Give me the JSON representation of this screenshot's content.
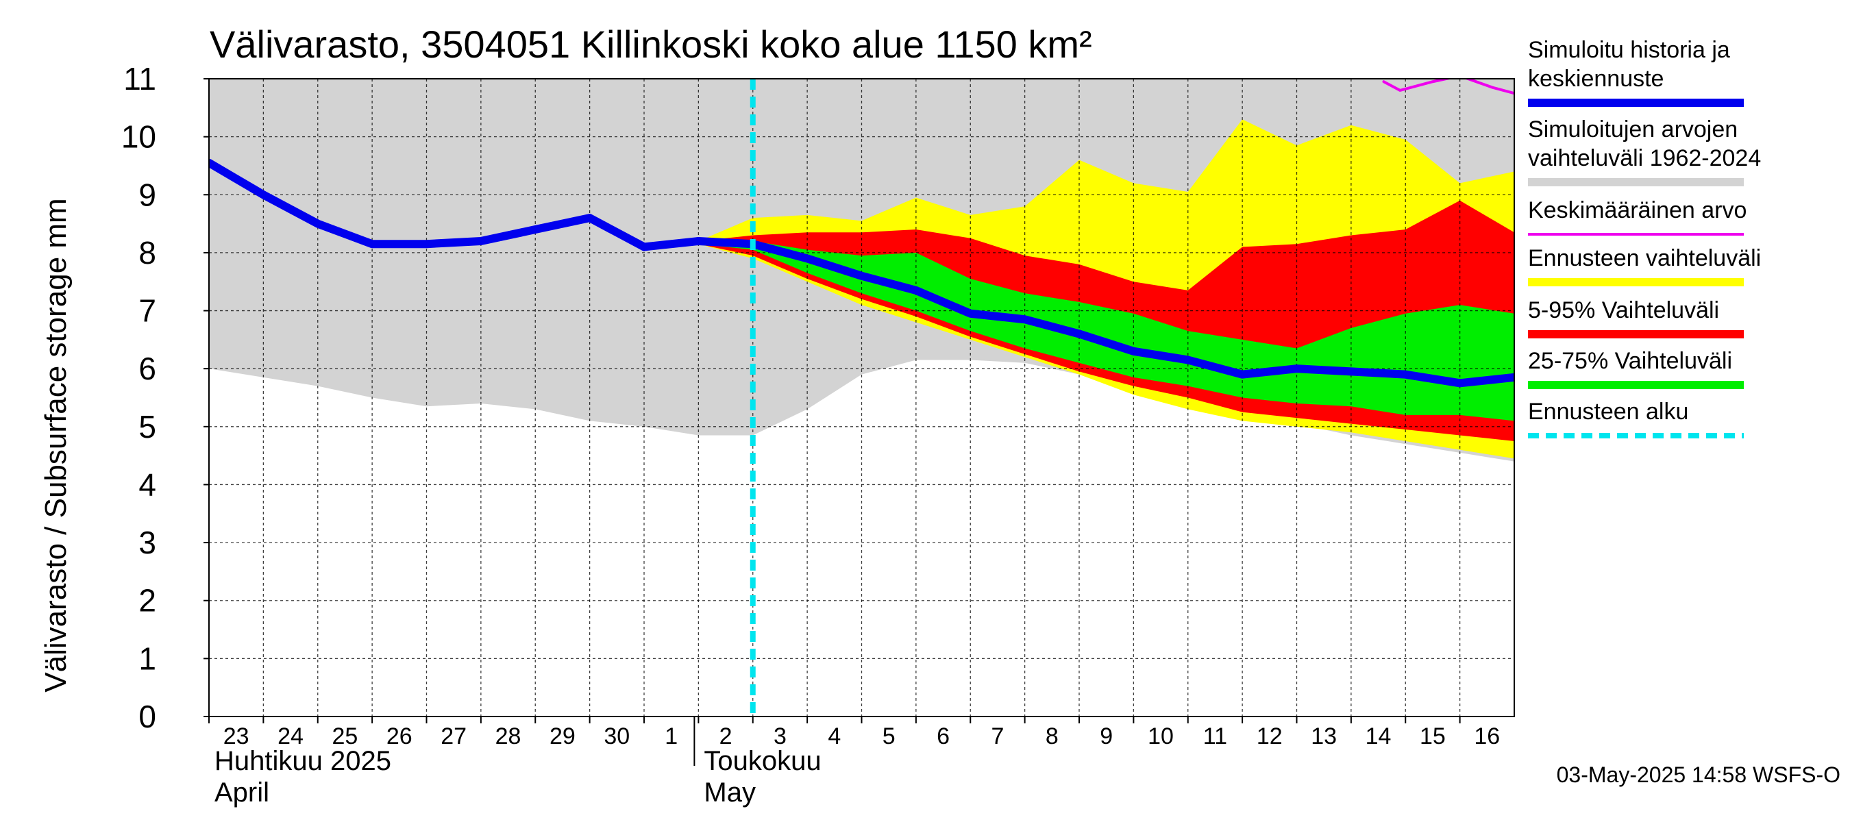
{
  "chart_data": {
    "type": "area",
    "title": "Välivarasto, 3504051 Killinkoski koko alue 1150 km²",
    "ylabel": "Välivarasto / Subsurface storage  mm",
    "ylim": [
      0,
      11
    ],
    "yticks": [
      0,
      1,
      2,
      3,
      4,
      5,
      6,
      7,
      8,
      9,
      10,
      11
    ],
    "x_tick_labels": [
      "23",
      "24",
      "25",
      "26",
      "27",
      "28",
      "29",
      "30",
      "1",
      "2",
      "3",
      "4",
      "5",
      "6",
      "7",
      "8",
      "9",
      "10",
      "11",
      "12",
      "13",
      "14",
      "15",
      "16"
    ],
    "x_range_days": [
      0,
      24
    ],
    "month_labels": [
      {
        "line1": "Huhtikuu  2025",
        "line2": "April",
        "day_index": 0
      },
      {
        "line1": "Toukokuu",
        "line2": "May",
        "day_index": 9
      }
    ],
    "forecast_start_day": 10,
    "timestamp": "03-May-2025 14:58 WSFS-O",
    "legend": [
      {
        "label_lines": [
          "Simuloitu historia ja",
          "keskiennuste"
        ],
        "color": "#0000ee",
        "style": "thick"
      },
      {
        "label_lines": [
          "Simuloitujen arvojen",
          "vaihteluväli 1962-2024"
        ],
        "color": "#d3d3d3",
        "style": "thick"
      },
      {
        "label_lines": [
          "Keskimääräinen arvo"
        ],
        "color": "#ee00ee",
        "style": "thin"
      },
      {
        "label_lines": [
          "Ennusteen vaihteluväli"
        ],
        "color": "#ffff00",
        "style": "thick"
      },
      {
        "label_lines": [
          "5-95% Vaihteluväli"
        ],
        "color": "#ff0000",
        "style": "thick"
      },
      {
        "label_lines": [
          "25-75% Vaihteluväli"
        ],
        "color": "#00ee00",
        "style": "thick"
      },
      {
        "label_lines": [
          "Ennusteen alku"
        ],
        "color": "#00e5ee",
        "style": "dashed"
      }
    ],
    "series": {
      "historical_range": {
        "name": "Simuloitujen arvojen vaihteluväli 1962-2024",
        "x": [
          0,
          1,
          2,
          3,
          4,
          5,
          6,
          7,
          8,
          9,
          10,
          11,
          12,
          13,
          14,
          15,
          16,
          17,
          18,
          19,
          20,
          21,
          22,
          23,
          24
        ],
        "low": [
          6.0,
          5.85,
          5.7,
          5.5,
          5.35,
          5.4,
          5.3,
          5.1,
          5.0,
          4.85,
          4.85,
          5.3,
          5.9,
          6.15,
          6.15,
          6.1,
          5.9,
          5.6,
          5.4,
          5.2,
          5.05,
          4.85,
          4.7,
          4.55,
          4.4
        ],
        "high": [
          11,
          11,
          11,
          11,
          11,
          11,
          11,
          11,
          11,
          11,
          11,
          11,
          11,
          11,
          11,
          11,
          11,
          11,
          11,
          11,
          11,
          11,
          11,
          11,
          11
        ]
      },
      "mean_value": {
        "name": "Keskimääräinen arvo",
        "x": [
          21.6,
          21.9,
          22.5,
          23.0,
          23.6,
          24.0
        ],
        "values": [
          10.95,
          10.8,
          10.95,
          11.05,
          10.85,
          10.75
        ]
      },
      "forecast_range": {
        "name": "Ennusteen vaihteluväli",
        "x": [
          9,
          10,
          11,
          12,
          13,
          14,
          15,
          16,
          17,
          18,
          19,
          20,
          21,
          22,
          23,
          24
        ],
        "low": [
          8.15,
          7.9,
          7.5,
          7.1,
          6.8,
          6.5,
          6.2,
          5.9,
          5.55,
          5.3,
          5.1,
          5.0,
          4.9,
          4.75,
          4.6,
          4.45
        ],
        "high": [
          8.2,
          8.6,
          8.65,
          8.55,
          8.95,
          8.65,
          8.8,
          9.6,
          9.2,
          9.05,
          10.3,
          9.85,
          10.2,
          9.95,
          9.2,
          9.4
        ]
      },
      "p5_95": {
        "name": "5-95% Vaihteluväli",
        "x": [
          9,
          10,
          11,
          12,
          13,
          14,
          15,
          16,
          17,
          18,
          19,
          20,
          21,
          22,
          23,
          24
        ],
        "low": [
          8.15,
          7.95,
          7.55,
          7.2,
          6.9,
          6.55,
          6.25,
          5.95,
          5.7,
          5.5,
          5.25,
          5.15,
          5.05,
          4.95,
          4.85,
          4.75
        ],
        "high": [
          8.2,
          8.3,
          8.35,
          8.35,
          8.4,
          8.25,
          7.95,
          7.8,
          7.5,
          7.35,
          8.1,
          8.15,
          8.3,
          8.4,
          8.9,
          8.35
        ]
      },
      "p25_75": {
        "name": "25-75% Vaihteluväli",
        "x": [
          9,
          10,
          11,
          12,
          13,
          14,
          15,
          16,
          17,
          18,
          19,
          20,
          21,
          22,
          23,
          24
        ],
        "low": [
          8.15,
          8.05,
          7.65,
          7.3,
          7.0,
          6.65,
          6.35,
          6.1,
          5.85,
          5.7,
          5.5,
          5.4,
          5.35,
          5.2,
          5.2,
          5.1
        ],
        "high": [
          8.2,
          8.2,
          8.05,
          7.95,
          8.0,
          7.55,
          7.3,
          7.15,
          6.95,
          6.65,
          6.5,
          6.35,
          6.7,
          6.95,
          7.1,
          6.95
        ]
      },
      "median": {
        "name": "Simuloitu historia ja keskiennuste",
        "x": [
          0,
          1,
          2,
          3,
          4,
          5,
          6,
          7,
          8,
          9,
          10,
          11,
          12,
          13,
          14,
          15,
          16,
          17,
          18,
          19,
          20,
          21,
          22,
          23,
          24
        ],
        "values": [
          9.55,
          9.0,
          8.5,
          8.15,
          8.15,
          8.2,
          8.4,
          8.6,
          8.1,
          8.2,
          8.15,
          7.9,
          7.6,
          7.35,
          6.95,
          6.85,
          6.6,
          6.3,
          6.15,
          5.9,
          6.0,
          5.95,
          5.9,
          5.75,
          5.85
        ]
      }
    }
  }
}
